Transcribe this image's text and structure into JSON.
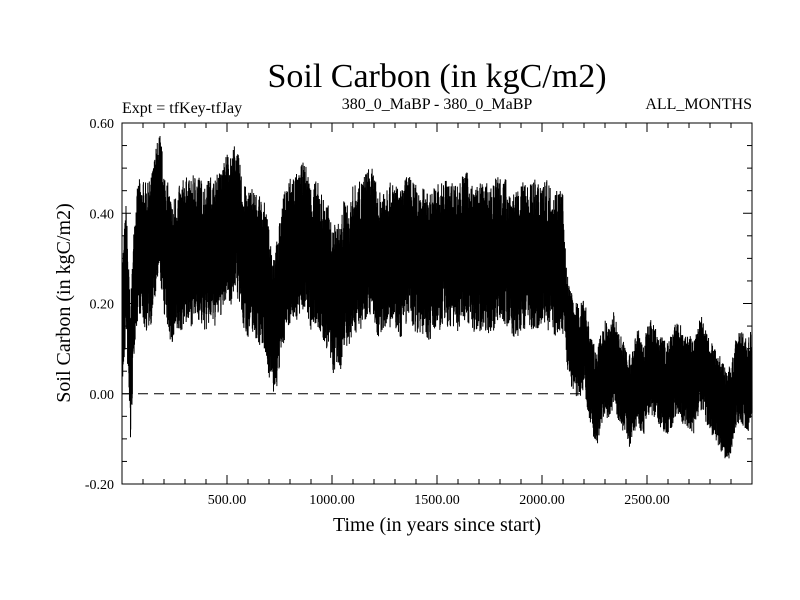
{
  "chart_data": {
    "type": "line",
    "title": "Soil Carbon (in kgC/m2)",
    "subtitle_left": "Expt = tfKey-tfJay",
    "subtitle_center": "380_0_MaBP - 380_0_MaBP",
    "subtitle_right": "ALL_MONTHS",
    "xlabel": "Time (in years since start)",
    "ylabel": "Soil Carbon (in kgC/m2)",
    "xlim": [
      0,
      3000
    ],
    "ylim": [
      -0.2,
      0.6
    ],
    "xticks": [
      500,
      1000,
      1500,
      2000,
      2500
    ],
    "xtick_labels": [
      "500.00",
      "1000.00",
      "1500.00",
      "2000.00",
      "2500.00"
    ],
    "yticks": [
      -0.2,
      0.0,
      0.2,
      0.4,
      0.6
    ],
    "ytick_labels": [
      "-0.20",
      "0.00",
      "0.20",
      "0.40",
      "0.60"
    ],
    "reference_line": {
      "y": 0.0,
      "style": "dashed"
    },
    "series": [
      {
        "color": "#000000",
        "points": [
          [
            0,
            0.14
          ],
          [
            20,
            0.28
          ],
          [
            40,
            0.04
          ],
          [
            60,
            0.26
          ],
          [
            80,
            0.33
          ],
          [
            100,
            0.31
          ],
          [
            120,
            0.3
          ],
          [
            140,
            0.32
          ],
          [
            160,
            0.38
          ],
          [
            180,
            0.42
          ],
          [
            200,
            0.34
          ],
          [
            220,
            0.3
          ],
          [
            240,
            0.26
          ],
          [
            260,
            0.29
          ],
          [
            280,
            0.3
          ],
          [
            300,
            0.32
          ],
          [
            320,
            0.31
          ],
          [
            340,
            0.32
          ],
          [
            360,
            0.33
          ],
          [
            380,
            0.31
          ],
          [
            400,
            0.3
          ],
          [
            420,
            0.32
          ],
          [
            440,
            0.31
          ],
          [
            460,
            0.33
          ],
          [
            480,
            0.34
          ],
          [
            500,
            0.38
          ],
          [
            520,
            0.36
          ],
          [
            540,
            0.4
          ],
          [
            560,
            0.35
          ],
          [
            580,
            0.3
          ],
          [
            600,
            0.29
          ],
          [
            620,
            0.3
          ],
          [
            640,
            0.28
          ],
          [
            660,
            0.27
          ],
          [
            680,
            0.26
          ],
          [
            700,
            0.2
          ],
          [
            720,
            0.16
          ],
          [
            740,
            0.18
          ],
          [
            760,
            0.25
          ],
          [
            780,
            0.3
          ],
          [
            800,
            0.32
          ],
          [
            820,
            0.33
          ],
          [
            840,
            0.32
          ],
          [
            860,
            0.35
          ],
          [
            880,
            0.34
          ],
          [
            900,
            0.3
          ],
          [
            920,
            0.31
          ],
          [
            940,
            0.3
          ],
          [
            960,
            0.27
          ],
          [
            980,
            0.26
          ],
          [
            1000,
            0.2
          ],
          [
            1020,
            0.22
          ],
          [
            1040,
            0.21
          ],
          [
            1060,
            0.28
          ],
          [
            1080,
            0.24
          ],
          [
            1100,
            0.3
          ],
          [
            1120,
            0.3
          ],
          [
            1140,
            0.31
          ],
          [
            1160,
            0.33
          ],
          [
            1180,
            0.34
          ],
          [
            1200,
            0.33
          ],
          [
            1220,
            0.27
          ],
          [
            1240,
            0.3
          ],
          [
            1260,
            0.32
          ],
          [
            1280,
            0.3
          ],
          [
            1300,
            0.31
          ],
          [
            1320,
            0.28
          ],
          [
            1340,
            0.3
          ],
          [
            1360,
            0.33
          ],
          [
            1380,
            0.31
          ],
          [
            1400,
            0.3
          ],
          [
            1420,
            0.3
          ],
          [
            1440,
            0.29
          ],
          [
            1460,
            0.28
          ],
          [
            1480,
            0.29
          ],
          [
            1500,
            0.31
          ],
          [
            1520,
            0.3
          ],
          [
            1540,
            0.32
          ],
          [
            1560,
            0.3
          ],
          [
            1580,
            0.31
          ],
          [
            1600,
            0.3
          ],
          [
            1620,
            0.32
          ],
          [
            1640,
            0.33
          ],
          [
            1660,
            0.31
          ],
          [
            1680,
            0.29
          ],
          [
            1700,
            0.3
          ],
          [
            1720,
            0.31
          ],
          [
            1740,
            0.3
          ],
          [
            1760,
            0.29
          ],
          [
            1780,
            0.32
          ],
          [
            1800,
            0.33
          ],
          [
            1820,
            0.32
          ],
          [
            1840,
            0.3
          ],
          [
            1860,
            0.29
          ],
          [
            1880,
            0.28
          ],
          [
            1900,
            0.3
          ],
          [
            1920,
            0.31
          ],
          [
            1940,
            0.3
          ],
          [
            1960,
            0.31
          ],
          [
            1980,
            0.31
          ],
          [
            2000,
            0.32
          ],
          [
            2020,
            0.31
          ],
          [
            2040,
            0.3
          ],
          [
            2060,
            0.29
          ],
          [
            2080,
            0.3
          ],
          [
            2100,
            0.29
          ],
          [
            2120,
            0.16
          ],
          [
            2140,
            0.12
          ],
          [
            2160,
            0.1
          ],
          [
            2180,
            0.09
          ],
          [
            2200,
            0.12
          ],
          [
            2220,
            0.06
          ],
          [
            2240,
            0.02
          ],
          [
            2260,
            -0.02
          ],
          [
            2280,
            0.03
          ],
          [
            2300,
            0.06
          ],
          [
            2320,
            0.04
          ],
          [
            2340,
            0.08
          ],
          [
            2360,
            0.05
          ],
          [
            2380,
            0.02
          ],
          [
            2400,
            0.01
          ],
          [
            2420,
            -0.02
          ],
          [
            2440,
            0.02
          ],
          [
            2460,
            0.04
          ],
          [
            2480,
            0.0
          ],
          [
            2500,
            0.05
          ],
          [
            2520,
            0.06
          ],
          [
            2540,
            0.04
          ],
          [
            2560,
            0.03
          ],
          [
            2580,
            0.02
          ],
          [
            2600,
            0.01
          ],
          [
            2620,
            0.03
          ],
          [
            2640,
            0.06
          ],
          [
            2660,
            0.05
          ],
          [
            2680,
            0.02
          ],
          [
            2700,
            0.03
          ],
          [
            2720,
            0.01
          ],
          [
            2740,
            0.05
          ],
          [
            2760,
            0.07
          ],
          [
            2780,
            0.04
          ],
          [
            2800,
            0.02
          ],
          [
            2820,
            0.0
          ],
          [
            2840,
            -0.01
          ],
          [
            2860,
            -0.03
          ],
          [
            2880,
            -0.05
          ],
          [
            2900,
            -0.04
          ],
          [
            2920,
            0.01
          ],
          [
            2940,
            0.04
          ],
          [
            2960,
            0.03
          ],
          [
            2980,
            0.02
          ],
          [
            3000,
            0.04
          ]
        ]
      }
    ],
    "envelope_halfwidth": [
      {
        "from": 0,
        "to": 100,
        "value": 0.1
      },
      {
        "from": 100,
        "to": 2100,
        "value": 0.11
      },
      {
        "from": 2100,
        "to": 3000,
        "value": 0.07
      }
    ],
    "grid": false,
    "legend": "none"
  }
}
